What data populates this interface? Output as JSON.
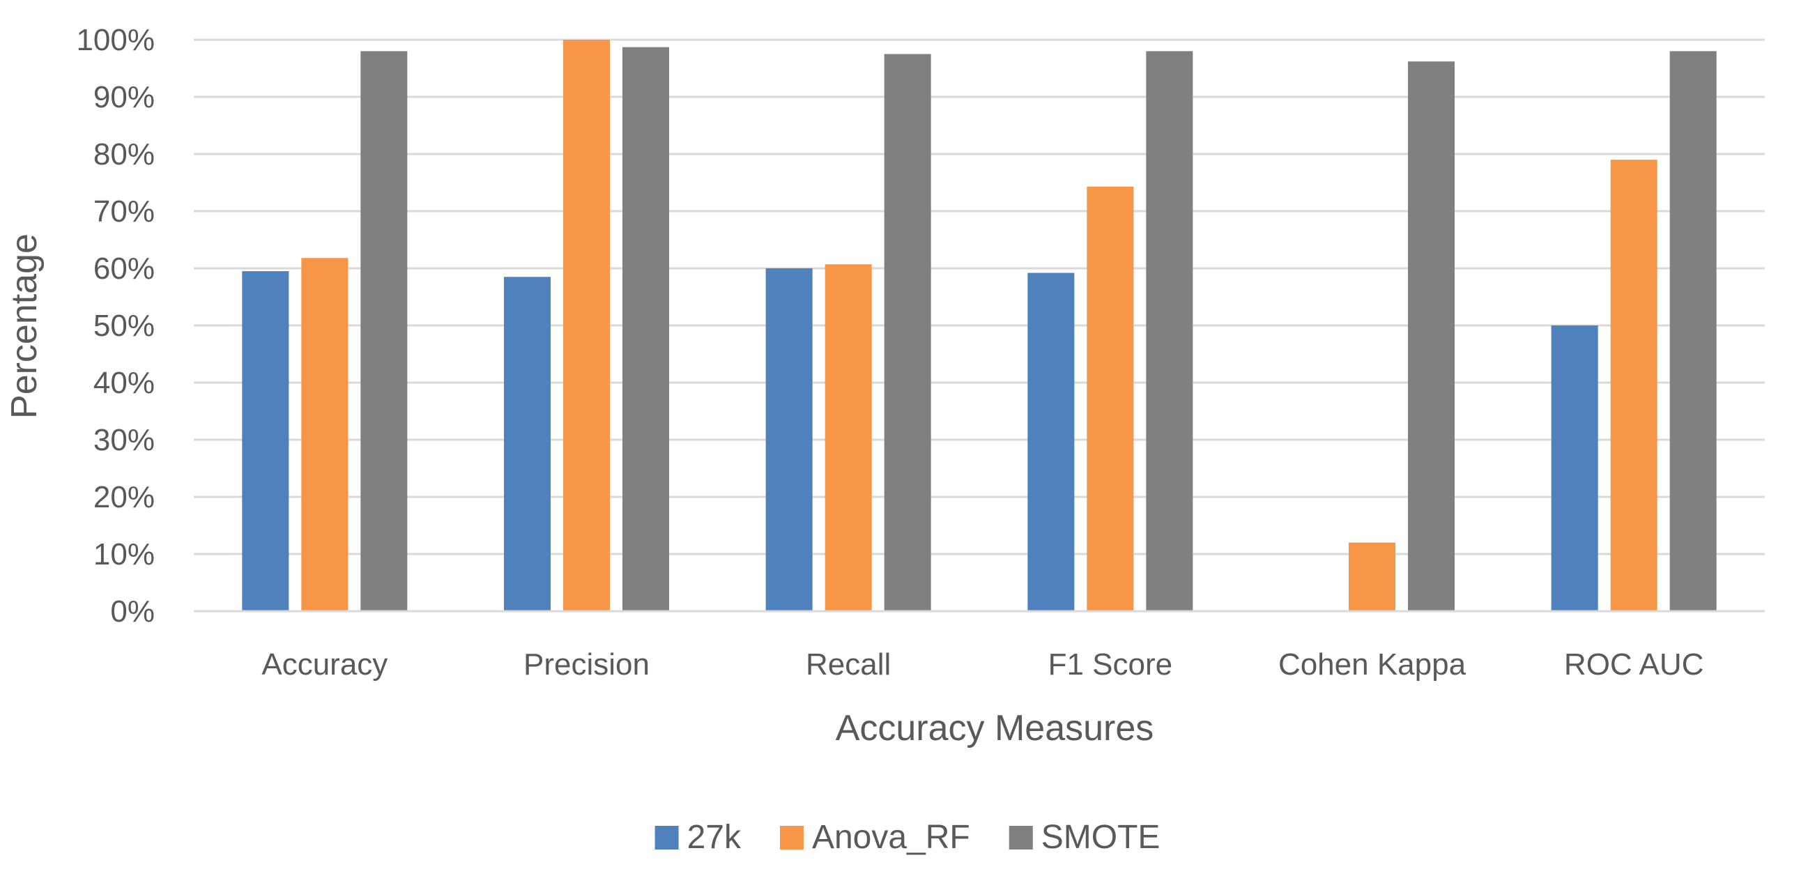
{
  "chart_data": {
    "type": "bar",
    "title": "",
    "xlabel": "Accuracy Measures",
    "ylabel": "Percentage",
    "ylim": [
      0,
      100
    ],
    "yticks": [
      0,
      10,
      20,
      30,
      40,
      50,
      60,
      70,
      80,
      90,
      100
    ],
    "ytick_suffix": "%",
    "grid": true,
    "legend_position": "bottom",
    "categories": [
      "Accuracy",
      "Precision",
      "Recall",
      "F1 Score",
      "Cohen Kappa",
      "ROC AUC"
    ],
    "series": [
      {
        "name": "27k",
        "color": "#4f81bd",
        "values": [
          59.5,
          58.5,
          60,
          59.2,
          0,
          50
        ]
      },
      {
        "name": "Anova_RF",
        "color": "#f79646",
        "values": [
          61.8,
          100,
          60.7,
          74.3,
          12,
          79
        ]
      },
      {
        "name": "SMOTE",
        "color": "#808080",
        "values": [
          98,
          98.7,
          97.5,
          98,
          96.2,
          98
        ]
      }
    ]
  }
}
